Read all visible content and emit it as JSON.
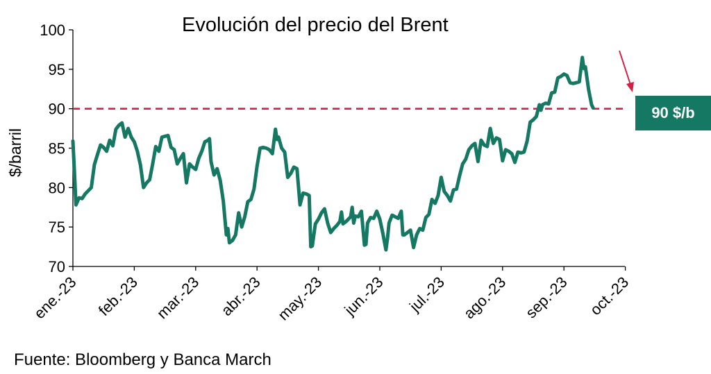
{
  "chart_data": {
    "type": "line",
    "title": "Evolución del precio del Brent",
    "ylabel": "$/barril",
    "xlabel": "",
    "ylim": [
      70,
      100
    ],
    "yticks": [
      70,
      75,
      80,
      85,
      90,
      95,
      100
    ],
    "x_tick_labels": [
      "ene.-23",
      "feb.-23",
      "mar.-23",
      "abr.-23",
      "may.-23",
      "jun.-23",
      "jul.-23",
      "ago.-23",
      "sep.-23",
      "oct.-23"
    ],
    "grid": false,
    "legend": "none",
    "colors": {
      "line": "#157863",
      "reference_line": "#d42046",
      "badge": "#157863",
      "arrow": "#d42046"
    },
    "reference_line": {
      "y": 90,
      "style": "dashed"
    },
    "annotation": {
      "label": "90 $/b",
      "value": 90
    },
    "series": [
      {
        "values": [
          [
            0.0,
            85.9
          ],
          [
            0.05,
            82.0
          ],
          [
            0.1,
            77.8
          ],
          [
            0.2,
            78.7
          ],
          [
            0.3,
            78.6
          ],
          [
            0.4,
            79.2
          ],
          [
            0.5,
            79.6
          ],
          [
            0.6,
            80.0
          ],
          [
            0.7,
            82.9
          ],
          [
            0.8,
            84.2
          ],
          [
            0.9,
            85.4
          ],
          [
            1.0,
            85.1
          ],
          [
            1.1,
            84.6
          ],
          [
            1.2,
            86.0
          ],
          [
            1.3,
            85.3
          ],
          [
            1.4,
            87.4
          ],
          [
            1.5,
            87.9
          ],
          [
            1.6,
            88.2
          ],
          [
            1.7,
            86.4
          ],
          [
            1.8,
            87.5
          ],
          [
            1.9,
            86.4
          ],
          [
            2.0,
            85.8
          ],
          [
            2.1,
            84.6
          ],
          [
            2.2,
            82.9
          ],
          [
            2.3,
            80.0
          ],
          [
            2.4,
            80.6
          ],
          [
            2.5,
            81.0
          ],
          [
            2.6,
            83.0
          ],
          [
            2.7,
            85.2
          ],
          [
            2.8,
            84.6
          ],
          [
            2.9,
            86.4
          ],
          [
            3.0,
            86.5
          ],
          [
            3.1,
            86.6
          ],
          [
            3.2,
            85.1
          ],
          [
            3.3,
            84.8
          ],
          [
            3.4,
            83.0
          ],
          [
            3.5,
            83.7
          ],
          [
            3.6,
            84.3
          ],
          [
            3.7,
            80.6
          ],
          [
            3.8,
            83.0
          ],
          [
            3.9,
            82.6
          ],
          [
            4.0,
            82.3
          ],
          [
            4.1,
            83.7
          ],
          [
            4.2,
            84.6
          ],
          [
            4.3,
            85.8
          ],
          [
            4.4,
            86.0
          ],
          [
            4.45,
            86.2
          ],
          [
            4.5,
            83.3
          ],
          [
            4.6,
            81.6
          ],
          [
            4.7,
            82.4
          ],
          [
            4.8,
            80.9
          ],
          [
            4.9,
            78.3
          ],
          [
            5.0,
            74.0
          ],
          [
            5.05,
            74.8
          ],
          [
            5.1,
            73.0
          ],
          [
            5.2,
            73.3
          ],
          [
            5.3,
            74.0
          ],
          [
            5.4,
            76.8
          ],
          [
            5.5,
            75.0
          ],
          [
            5.6,
            76.3
          ],
          [
            5.7,
            78.2
          ],
          [
            5.8,
            78.5
          ],
          [
            5.9,
            79.8
          ],
          [
            6.0,
            82.7
          ],
          [
            6.1,
            85.0
          ],
          [
            6.2,
            85.1
          ],
          [
            6.3,
            85.0
          ],
          [
            6.4,
            84.8
          ],
          [
            6.5,
            84.3
          ],
          [
            6.6,
            87.4
          ],
          [
            6.65,
            86.1
          ],
          [
            6.7,
            86.4
          ],
          [
            6.8,
            85.0
          ],
          [
            6.9,
            84.5
          ],
          [
            7.0,
            81.3
          ],
          [
            7.1,
            81.8
          ],
          [
            7.2,
            82.6
          ],
          [
            7.3,
            82.4
          ],
          [
            7.4,
            77.8
          ],
          [
            7.5,
            79.3
          ],
          [
            7.6,
            79.2
          ],
          [
            7.7,
            79.0
          ],
          [
            7.75,
            72.5
          ],
          [
            7.8,
            72.6
          ],
          [
            7.9,
            75.4
          ],
          [
            8.0,
            76.0
          ],
          [
            8.1,
            76.8
          ],
          [
            8.2,
            77.3
          ],
          [
            8.3,
            75.5
          ],
          [
            8.4,
            74.3
          ],
          [
            8.5,
            74.8
          ],
          [
            8.6,
            75.2
          ],
          [
            8.7,
            75.7
          ],
          [
            8.75,
            76.9
          ],
          [
            8.8,
            75.4
          ],
          [
            8.9,
            75.7
          ],
          [
            9.0,
            76.1
          ],
          [
            9.05,
            76.3
          ],
          [
            9.1,
            77.5
          ],
          [
            9.15,
            75.5
          ],
          [
            9.2,
            76.4
          ],
          [
            9.3,
            76.3
          ],
          [
            9.4,
            77.0
          ],
          [
            9.5,
            72.7
          ],
          [
            9.55,
            72.8
          ],
          [
            9.6,
            75.5
          ],
          [
            9.7,
            76.2
          ],
          [
            9.8,
            76.1
          ],
          [
            9.9,
            77.0
          ],
          [
            10.0,
            76.0
          ],
          [
            10.1,
            74.2
          ],
          [
            10.2,
            72.1
          ],
          [
            10.25,
            73.5
          ],
          [
            10.3,
            75.5
          ],
          [
            10.4,
            76.5
          ],
          [
            10.5,
            76.3
          ],
          [
            10.6,
            76.1
          ],
          [
            10.7,
            77.0
          ],
          [
            10.75,
            74.0
          ],
          [
            10.8,
            74.0
          ],
          [
            10.9,
            74.3
          ],
          [
            11.0,
            74.6
          ],
          [
            11.1,
            72.4
          ],
          [
            11.2,
            74.0
          ],
          [
            11.3,
            74.8
          ],
          [
            11.4,
            74.6
          ],
          [
            11.5,
            76.2
          ],
          [
            11.6,
            76.6
          ],
          [
            11.7,
            78.5
          ],
          [
            11.8,
            78.0
          ],
          [
            11.9,
            79.0
          ],
          [
            12.0,
            81.3
          ],
          [
            12.1,
            79.5
          ],
          [
            12.2,
            79.0
          ],
          [
            12.3,
            78.3
          ],
          [
            12.4,
            79.7
          ],
          [
            12.5,
            79.8
          ],
          [
            12.6,
            81.5
          ],
          [
            12.7,
            83.0
          ],
          [
            12.8,
            83.6
          ],
          [
            12.9,
            84.8
          ],
          [
            13.0,
            85.3
          ],
          [
            13.1,
            85.6
          ],
          [
            13.2,
            83.3
          ],
          [
            13.3,
            86.0
          ],
          [
            13.4,
            85.4
          ],
          [
            13.5,
            85.2
          ],
          [
            13.6,
            87.5
          ],
          [
            13.7,
            85.6
          ],
          [
            13.8,
            86.3
          ],
          [
            13.9,
            86.1
          ],
          [
            14.0,
            83.4
          ],
          [
            14.1,
            84.8
          ],
          [
            14.2,
            84.6
          ],
          [
            14.3,
            84.3
          ],
          [
            14.4,
            83.2
          ],
          [
            14.5,
            84.5
          ],
          [
            14.6,
            84.4
          ],
          [
            14.7,
            84.5
          ],
          [
            14.8,
            85.9
          ],
          [
            14.9,
            88.3
          ],
          [
            15.0,
            88.6
          ],
          [
            15.1,
            89.0
          ],
          [
            15.2,
            90.5
          ],
          [
            15.25,
            89.8
          ],
          [
            15.3,
            90.5
          ],
          [
            15.4,
            90.7
          ],
          [
            15.5,
            90.6
          ],
          [
            15.6,
            92.0
          ],
          [
            15.7,
            92.1
          ],
          [
            15.8,
            93.9
          ],
          [
            15.9,
            94.1
          ],
          [
            16.0,
            94.4
          ],
          [
            16.1,
            94.2
          ],
          [
            16.2,
            93.3
          ],
          [
            16.3,
            93.2
          ],
          [
            16.4,
            93.3
          ],
          [
            16.5,
            93.4
          ],
          [
            16.6,
            96.5
          ],
          [
            16.65,
            95.1
          ],
          [
            16.7,
            95.3
          ],
          [
            16.8,
            92.5
          ],
          [
            16.9,
            90.5
          ],
          [
            16.95,
            90.1
          ]
        ]
      }
    ]
  },
  "source": "Fuente: Bloomberg y Banca March"
}
